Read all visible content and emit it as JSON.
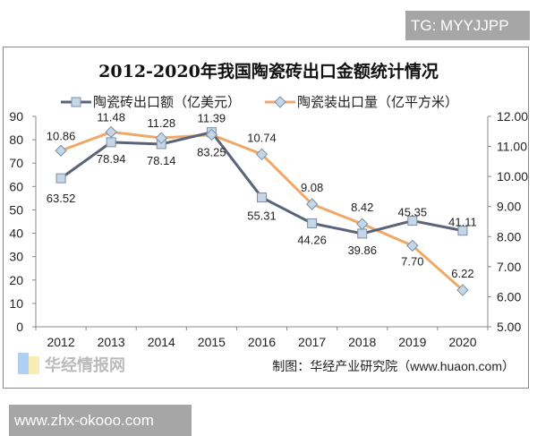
{
  "watermarks": {
    "top": "TG: MYYJJPP",
    "bottom": "www.zhx-okooo.com",
    "logo": "华经情报网 huaon.com"
  },
  "chart_data": {
    "type": "line",
    "title": "2012-2020年我国陶瓷砖出口金额统计情况",
    "categories": [
      "2012",
      "2013",
      "2014",
      "2015",
      "2016",
      "2017",
      "2018",
      "2019",
      "2020"
    ],
    "series": [
      {
        "name": "陶瓷砖出口额（亿美元）",
        "axis": "left",
        "color": "#5a6478",
        "marker": "square",
        "values": [
          63.52,
          78.94,
          78.14,
          83.25,
          55.31,
          44.26,
          39.86,
          45.35,
          41.11
        ],
        "labels": [
          "63.52",
          "78.94",
          "78.14",
          "83.25",
          "55.31",
          "44.26",
          "39.86",
          "45.35",
          "41.11"
        ]
      },
      {
        "name": "陶瓷装出口量（亿平方米）",
        "axis": "right",
        "color": "#f0a868",
        "marker": "diamond",
        "values": [
          10.86,
          11.48,
          11.28,
          11.39,
          10.74,
          9.08,
          8.42,
          7.7,
          6.22
        ],
        "labels": [
          "10.86",
          "11.48",
          "11.28",
          "11.39",
          "10.74",
          "9.08",
          "8.42",
          "7.70",
          "6.22"
        ]
      }
    ],
    "y_left": {
      "range": [
        0,
        90
      ],
      "ticks": [
        "0",
        "10",
        "20",
        "30",
        "40",
        "50",
        "60",
        "70",
        "80",
        "90"
      ]
    },
    "y_right": {
      "range": [
        5,
        12
      ],
      "ticks": [
        "5.00",
        "6.00",
        "7.00",
        "8.00",
        "9.00",
        "10.00",
        "11.00",
        "12.00"
      ]
    },
    "grid": false,
    "legend": "top",
    "source": "制图：华经产业研究院（www.huaon.com）"
  }
}
